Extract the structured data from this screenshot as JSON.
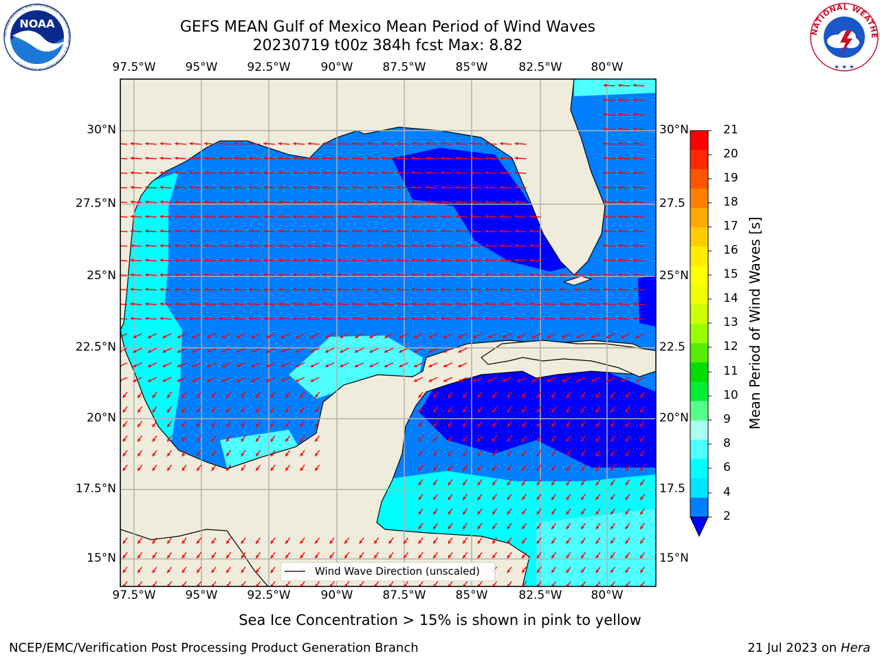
{
  "title": {
    "line1": "GEFS MEAN Gulf of Mexico Mean Period of Wind Waves",
    "line2": "20230719 t00z 384h fcst   Max: 8.82"
  },
  "map": {
    "lon_labels": [
      "97.5°W",
      "95°W",
      "92.5°W",
      "90°W",
      "87.5°W",
      "85°W",
      "82.5°W",
      "80°W"
    ],
    "lat_labels_left": [
      "30°N",
      "27.5°N",
      "25°N",
      "22.5°N",
      "20°N",
      "17.5°N",
      "15°N"
    ],
    "lat_labels_right": [
      "30°N",
      "27.5",
      "25°N",
      "22.5",
      "20°N",
      "17.5",
      "15°N"
    ],
    "legend_label": "Wind Wave Direction (unscaled)",
    "colors": {
      "land": "#efecdb",
      "band_2_4": "#0080ff",
      "band_4_6": "#00e5ff",
      "band_6_8": "#4dffff",
      "below_2": "#0000ff",
      "arrow": "#ff0000",
      "grid": "#b0b0b0"
    }
  },
  "colorbar": {
    "label": "Mean Period of Wind Waves [s]",
    "ticks": [
      "21",
      "20",
      "19",
      "18",
      "17",
      "16",
      "15",
      "14",
      "13",
      "12",
      "11",
      "10",
      "9",
      "8",
      "6",
      "4",
      "2"
    ],
    "colors": [
      "#ff0000",
      "#ff2a00",
      "#ff5500",
      "#ff7f00",
      "#ffaa00",
      "#ffcc00",
      "#ffee00",
      "#ffff00",
      "#eeff00",
      "#ccff00",
      "#99ff00",
      "#55ee00",
      "#00dd00",
      "#00ee33",
      "#55ff88",
      "#aaffee",
      "#4dffff",
      "#00ffff",
      "#00e5ff",
      "#0080ff"
    ],
    "extend_color": "#0000ff"
  },
  "subtitle": "Sea Ice Concentration > 15% is shown in pink to yellow",
  "footer": {
    "left": "NCEP/EMC/Verification Post Processing Product Generation Branch",
    "date": "21 Jul 2023 on ",
    "machine": "Hera"
  },
  "logos": {
    "noaa": "NOAA",
    "noaa_ring": "NATIONAL OCEANIC AND ATMOSPHERIC ADMINISTRATION · U.S. DEPARTMENT OF COMMERCE",
    "nws_ring": "NATIONAL WEATHER SERVICE"
  }
}
